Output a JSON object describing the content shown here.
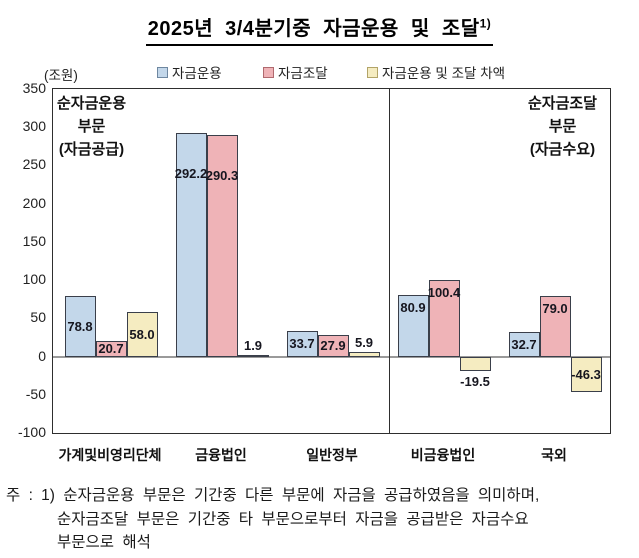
{
  "title": {
    "text": "2025년 3/4분기중 자금운용 및 조달",
    "superscript": "1)"
  },
  "unit_label": "(조원)",
  "legend": [
    {
      "label": "자금운용",
      "color": "#c3d7ea",
      "border": "#6e87a0"
    },
    {
      "label": "자금조달",
      "color": "#efb3b7",
      "border": "#b0696e"
    },
    {
      "label": "자금운용 및 조달 차액",
      "color": "#f5ecc1",
      "border": "#b2a468"
    }
  ],
  "annotations": {
    "left": [
      "순자금운용",
      "부문",
      "(자금공급)"
    ],
    "right": [
      "순자금조달",
      "부문",
      "(자금수요)"
    ]
  },
  "chart_data": {
    "type": "bar",
    "title": "2025년 3/4분기중 자금운용 및 조달",
    "unit": "조원",
    "categories": [
      "가계및비영리단체",
      "금융법인",
      "일반정부",
      "비금융법인",
      "국외"
    ],
    "series": [
      {
        "name": "자금운용",
        "color": "#c3d7ea",
        "values": [
          78.8,
          292.2,
          33.7,
          80.9,
          32.7
        ],
        "label_pos": [
          "mid",
          "t40",
          "mid",
          "t",
          "mid"
        ]
      },
      {
        "name": "자금조달",
        "color": "#efb3b7",
        "values": [
          20.7,
          290.3,
          27.9,
          100.4,
          79.0
        ],
        "label_pos": [
          "mid",
          "t40",
          "mid",
          "t",
          "t"
        ]
      },
      {
        "name": "자금운용 및 조달 차액",
        "color": "#f5ecc1",
        "values": [
          58.0,
          1.9,
          5.9,
          -19.5,
          -46.3
        ],
        "label_pos": [
          "mid",
          "above",
          "above",
          "below",
          "mid"
        ]
      }
    ],
    "y_axis": {
      "min": -100,
      "max": 350,
      "ticks": [
        350,
        300,
        250,
        200,
        150,
        100,
        50,
        0,
        -50,
        -100
      ]
    },
    "divider_after_category": 2,
    "grid": false,
    "legend_position": "top"
  },
  "footnote": {
    "lines": [
      "주 : 1) 순자금운용 부문은 기간중 다른 부문에 자금을 공급하였음을 의미하며,",
      "순자금조달 부문은 기간중 타 부문으로부터 자금을 공급받은 자금수요",
      "부문으로 해석"
    ]
  }
}
